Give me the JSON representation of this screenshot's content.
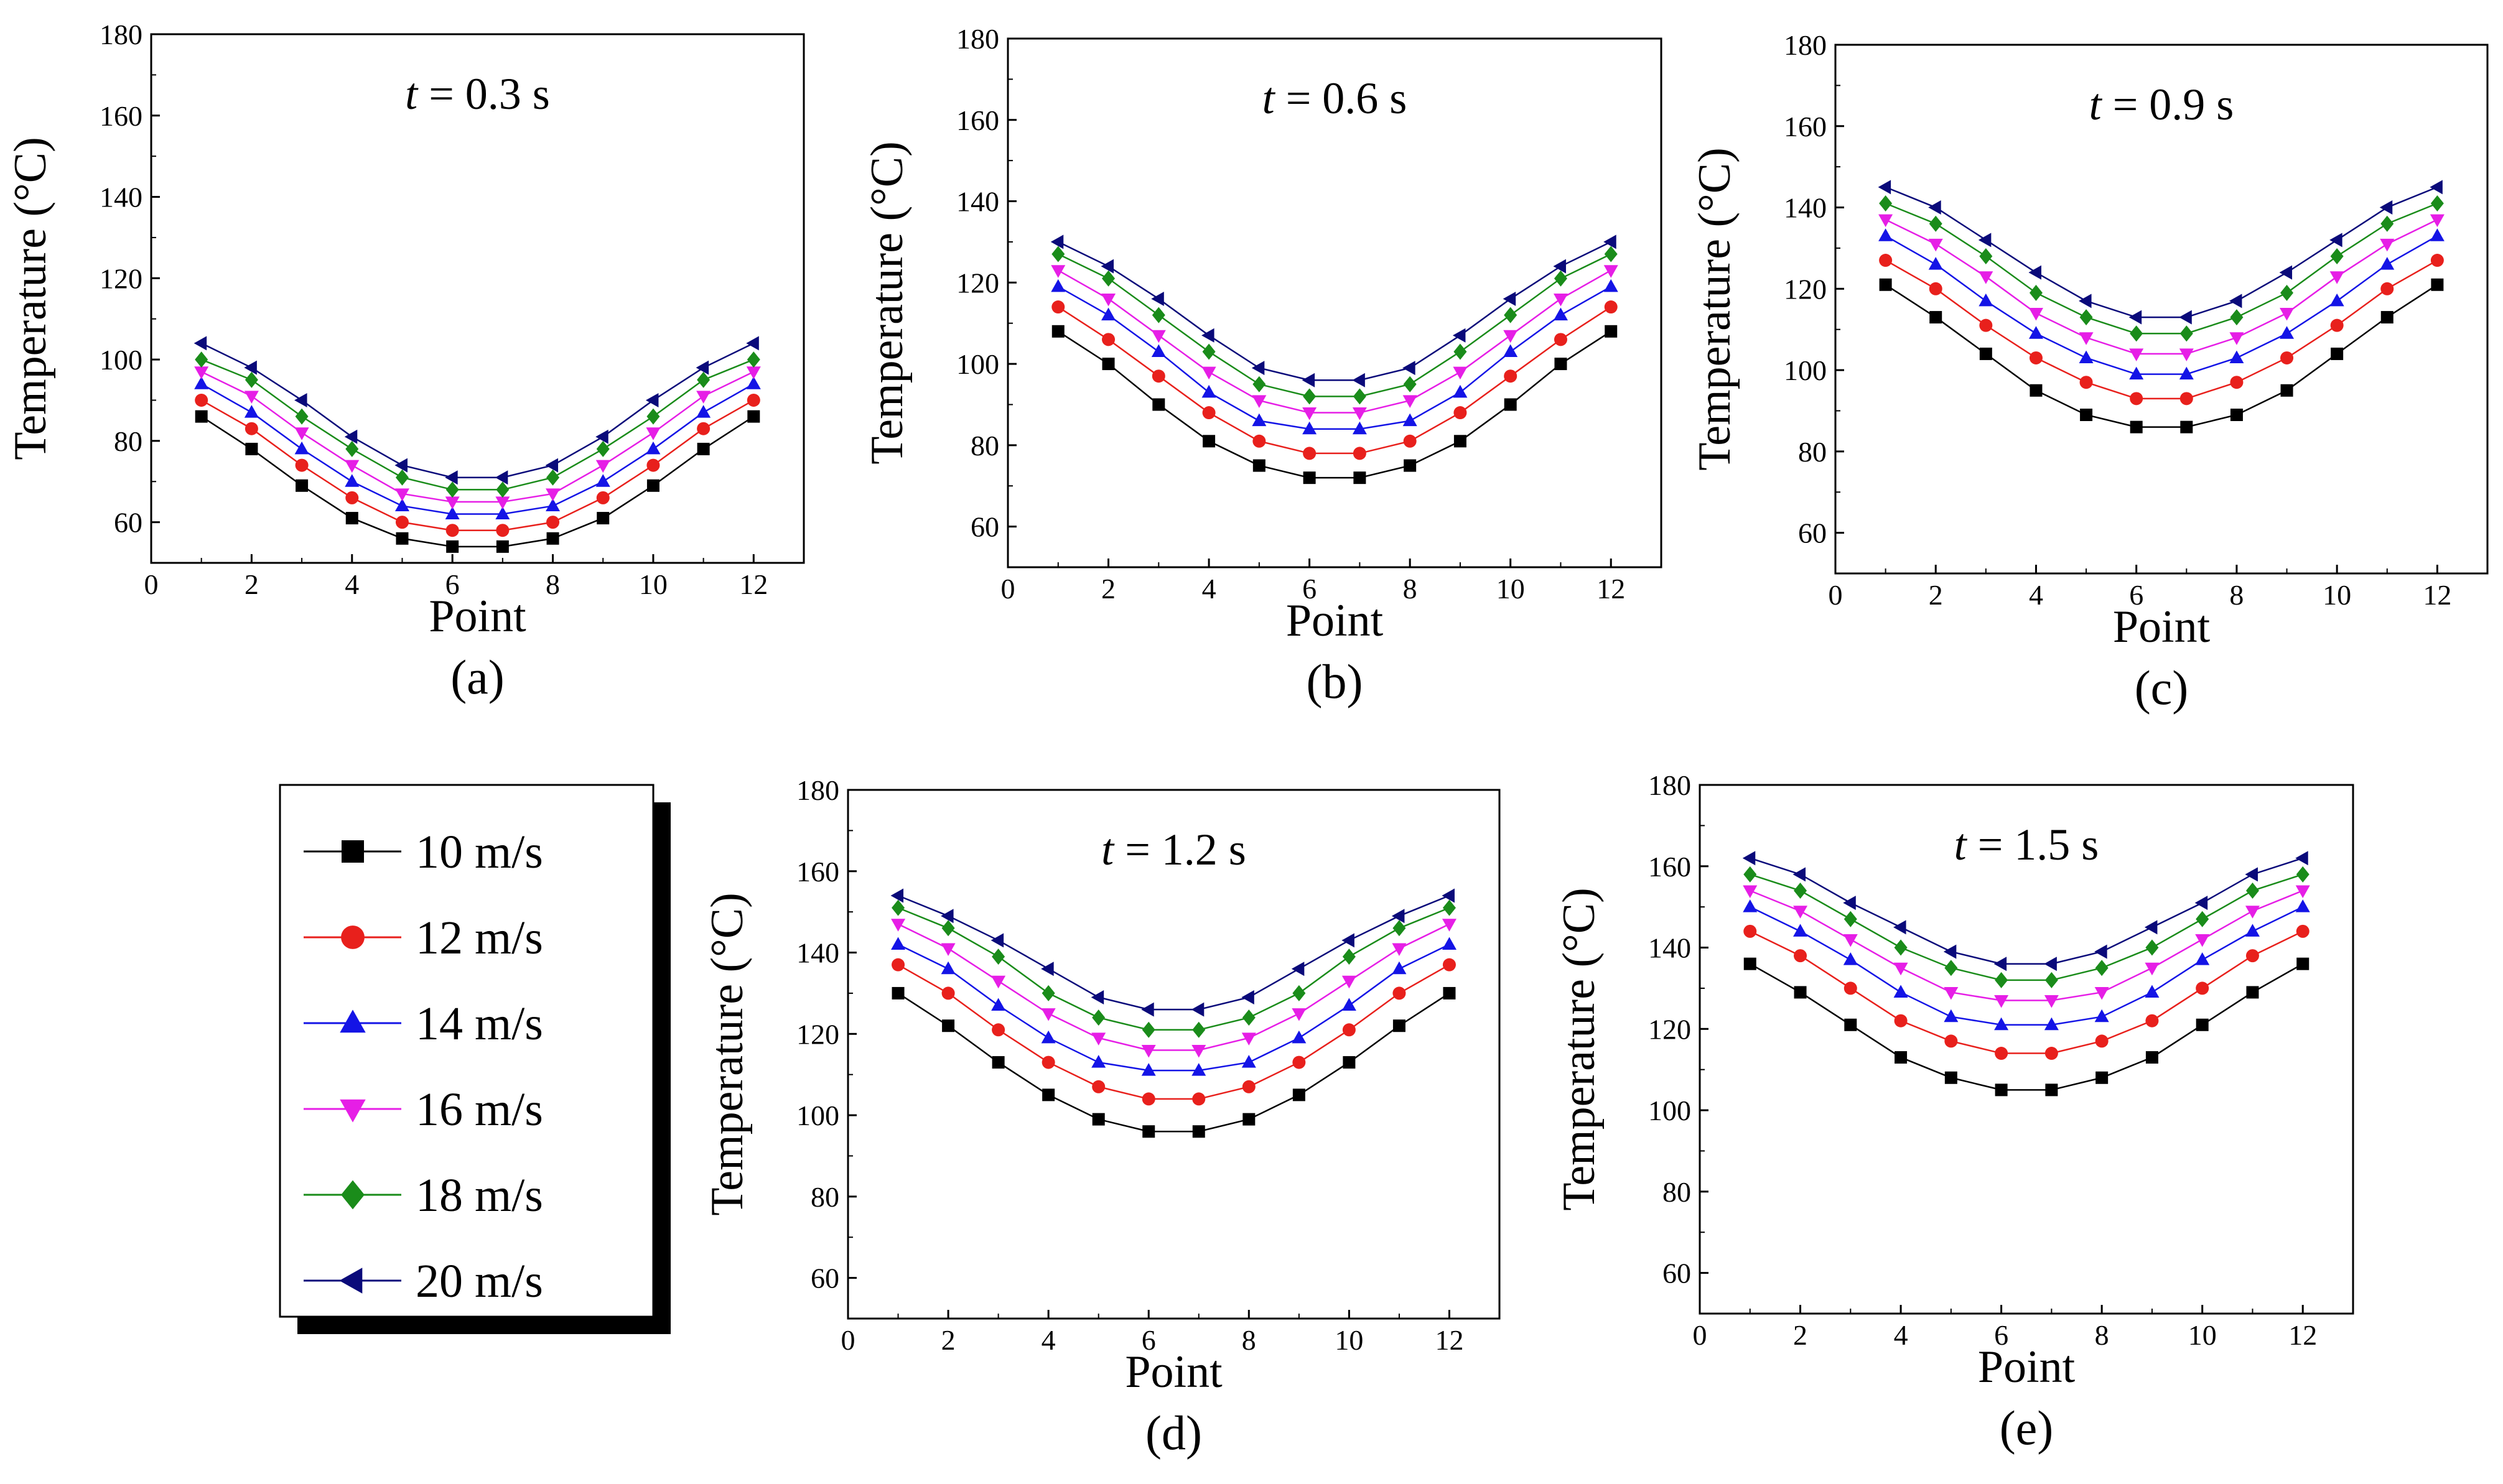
{
  "chart_data": [
    {
      "type": "line",
      "panel_label": "(a)",
      "title": {
        "var": "t",
        "rest": " = 0.3 s"
      },
      "xlabel": "Point",
      "ylabel": "Temperature (°C)",
      "xlim": [
        0,
        13
      ],
      "ylim": [
        50,
        180
      ],
      "xticks": [
        0,
        2,
        4,
        6,
        8,
        10,
        12
      ],
      "yticks": [
        60,
        80,
        100,
        120,
        140,
        160,
        180
      ],
      "x": [
        1,
        2,
        3,
        4,
        5,
        6,
        7,
        8,
        9,
        10,
        11,
        12
      ],
      "series": [
        {
          "name": "10 m/s",
          "values": [
            86,
            78,
            69,
            61,
            56,
            54,
            54,
            56,
            61,
            69,
            78,
            86
          ]
        },
        {
          "name": "12 m/s",
          "values": [
            90,
            83,
            74,
            66,
            60,
            58,
            58,
            60,
            66,
            74,
            83,
            90
          ]
        },
        {
          "name": "14 m/s",
          "values": [
            94,
            87,
            78,
            70,
            64,
            62,
            62,
            64,
            70,
            78,
            87,
            94
          ]
        },
        {
          "name": "16 m/s",
          "values": [
            97,
            91,
            82,
            74,
            67,
            65,
            65,
            67,
            74,
            82,
            91,
            97
          ]
        },
        {
          "name": "18 m/s",
          "values": [
            100,
            95,
            86,
            78,
            71,
            68,
            68,
            71,
            78,
            86,
            95,
            100
          ]
        },
        {
          "name": "20 m/s",
          "values": [
            104,
            98,
            90,
            81,
            74,
            71,
            71,
            74,
            81,
            90,
            98,
            104
          ]
        }
      ]
    },
    {
      "type": "line",
      "panel_label": "(b)",
      "title": {
        "var": "t",
        "rest": " = 0.6 s"
      },
      "xlabel": "Point",
      "ylabel": "Temperature (°C)",
      "xlim": [
        0,
        13
      ],
      "ylim": [
        50,
        180
      ],
      "xticks": [
        0,
        2,
        4,
        6,
        8,
        10,
        12
      ],
      "yticks": [
        60,
        80,
        100,
        120,
        140,
        160,
        180
      ],
      "x": [
        1,
        2,
        3,
        4,
        5,
        6,
        7,
        8,
        9,
        10,
        11,
        12
      ],
      "series": [
        {
          "name": "10 m/s",
          "values": [
            108,
            100,
            90,
            81,
            75,
            72,
            72,
            75,
            81,
            90,
            100,
            108
          ]
        },
        {
          "name": "12 m/s",
          "values": [
            114,
            106,
            97,
            88,
            81,
            78,
            78,
            81,
            88,
            97,
            106,
            114
          ]
        },
        {
          "name": "14 m/s",
          "values": [
            119,
            112,
            103,
            93,
            86,
            84,
            84,
            86,
            93,
            103,
            112,
            119
          ]
        },
        {
          "name": "16 m/s",
          "values": [
            123,
            116,
            107,
            98,
            91,
            88,
            88,
            91,
            98,
            107,
            116,
            123
          ]
        },
        {
          "name": "18 m/s",
          "values": [
            127,
            121,
            112,
            103,
            95,
            92,
            92,
            95,
            103,
            112,
            121,
            127
          ]
        },
        {
          "name": "20 m/s",
          "values": [
            130,
            124,
            116,
            107,
            99,
            96,
            96,
            99,
            107,
            116,
            124,
            130
          ]
        }
      ]
    },
    {
      "type": "line",
      "panel_label": "(c)",
      "title": {
        "var": "t",
        "rest": " = 0.9 s"
      },
      "xlabel": "Point",
      "ylabel": "Temperature (°C)",
      "xlim": [
        0,
        13
      ],
      "ylim": [
        50,
        180
      ],
      "xticks": [
        0,
        2,
        4,
        6,
        8,
        10,
        12
      ],
      "yticks": [
        60,
        80,
        100,
        120,
        140,
        160,
        180
      ],
      "x": [
        1,
        2,
        3,
        4,
        5,
        6,
        7,
        8,
        9,
        10,
        11,
        12
      ],
      "series": [
        {
          "name": "10 m/s",
          "values": [
            121,
            113,
            104,
            95,
            89,
            86,
            86,
            89,
            95,
            104,
            113,
            121
          ]
        },
        {
          "name": "12 m/s",
          "values": [
            127,
            120,
            111,
            103,
            97,
            93,
            93,
            97,
            103,
            111,
            120,
            127
          ]
        },
        {
          "name": "14 m/s",
          "values": [
            133,
            126,
            117,
            109,
            103,
            99,
            99,
            103,
            109,
            117,
            126,
            133
          ]
        },
        {
          "name": "16 m/s",
          "values": [
            137,
            131,
            123,
            114,
            108,
            104,
            104,
            108,
            114,
            123,
            131,
            137
          ]
        },
        {
          "name": "18 m/s",
          "values": [
            141,
            136,
            128,
            119,
            113,
            109,
            109,
            113,
            119,
            128,
            136,
            141
          ]
        },
        {
          "name": "20 m/s",
          "values": [
            145,
            140,
            132,
            124,
            117,
            113,
            113,
            117,
            124,
            132,
            140,
            145
          ]
        }
      ]
    },
    {
      "type": "line",
      "panel_label": "(d)",
      "title": {
        "var": "t",
        "rest": " = 1.2 s"
      },
      "xlabel": "Point",
      "ylabel": "Temperature (°C)",
      "xlim": [
        0,
        13
      ],
      "ylim": [
        50,
        180
      ],
      "xticks": [
        0,
        2,
        4,
        6,
        8,
        10,
        12
      ],
      "yticks": [
        60,
        80,
        100,
        120,
        140,
        160,
        180
      ],
      "x": [
        1,
        2,
        3,
        4,
        5,
        6,
        7,
        8,
        9,
        10,
        11,
        12
      ],
      "series": [
        {
          "name": "10 m/s",
          "values": [
            130,
            122,
            113,
            105,
            99,
            96,
            96,
            99,
            105,
            113,
            122,
            130
          ]
        },
        {
          "name": "12 m/s",
          "values": [
            137,
            130,
            121,
            113,
            107,
            104,
            104,
            107,
            113,
            121,
            130,
            137
          ]
        },
        {
          "name": "14 m/s",
          "values": [
            142,
            136,
            127,
            119,
            113,
            111,
            111,
            113,
            119,
            127,
            136,
            142
          ]
        },
        {
          "name": "16 m/s",
          "values": [
            147,
            141,
            133,
            125,
            119,
            116,
            116,
            119,
            125,
            133,
            141,
            147
          ]
        },
        {
          "name": "18 m/s",
          "values": [
            151,
            146,
            139,
            130,
            124,
            121,
            121,
            124,
            130,
            139,
            146,
            151
          ]
        },
        {
          "name": "20 m/s",
          "values": [
            154,
            149,
            143,
            136,
            129,
            126,
            126,
            129,
            136,
            143,
            149,
            154
          ]
        }
      ]
    },
    {
      "type": "line",
      "panel_label": "(e)",
      "title": {
        "var": "t",
        "rest": " = 1.5 s"
      },
      "xlabel": "Point",
      "ylabel": "Temperature (°C)",
      "xlim": [
        0,
        13
      ],
      "ylim": [
        50,
        180
      ],
      "xticks": [
        0,
        2,
        4,
        6,
        8,
        10,
        12
      ],
      "yticks": [
        60,
        80,
        100,
        120,
        140,
        160,
        180
      ],
      "x": [
        1,
        2,
        3,
        4,
        5,
        6,
        7,
        8,
        9,
        10,
        11,
        12
      ],
      "series": [
        {
          "name": "10 m/s",
          "values": [
            136,
            129,
            121,
            113,
            108,
            105,
            105,
            108,
            113,
            121,
            129,
            136
          ]
        },
        {
          "name": "12 m/s",
          "values": [
            144,
            138,
            130,
            122,
            117,
            114,
            114,
            117,
            122,
            130,
            138,
            144
          ]
        },
        {
          "name": "14 m/s",
          "values": [
            150,
            144,
            137,
            129,
            123,
            121,
            121,
            123,
            129,
            137,
            144,
            150
          ]
        },
        {
          "name": "16 m/s",
          "values": [
            154,
            149,
            142,
            135,
            129,
            127,
            127,
            129,
            135,
            142,
            149,
            154
          ]
        },
        {
          "name": "18 m/s",
          "values": [
            158,
            154,
            147,
            140,
            135,
            132,
            132,
            135,
            140,
            147,
            154,
            158
          ]
        },
        {
          "name": "20 m/s",
          "values": [
            162,
            158,
            151,
            145,
            139,
            136,
            136,
            139,
            145,
            151,
            158,
            162
          ]
        }
      ]
    }
  ],
  "legend": {
    "entries": [
      {
        "label": "10 m/s",
        "marker": "square",
        "color": "#000000"
      },
      {
        "label": "12 m/s",
        "marker": "circle",
        "color": "#e8201c"
      },
      {
        "label": "14 m/s",
        "marker": "triangle-up",
        "color": "#1414e6"
      },
      {
        "label": "16 m/s",
        "marker": "triangle-down",
        "color": "#e61ee6"
      },
      {
        "label": "18 m/s",
        "marker": "diamond",
        "color": "#1a8c1a"
      },
      {
        "label": "20 m/s",
        "marker": "triangle-left",
        "color": "#0a0a7a"
      }
    ]
  }
}
